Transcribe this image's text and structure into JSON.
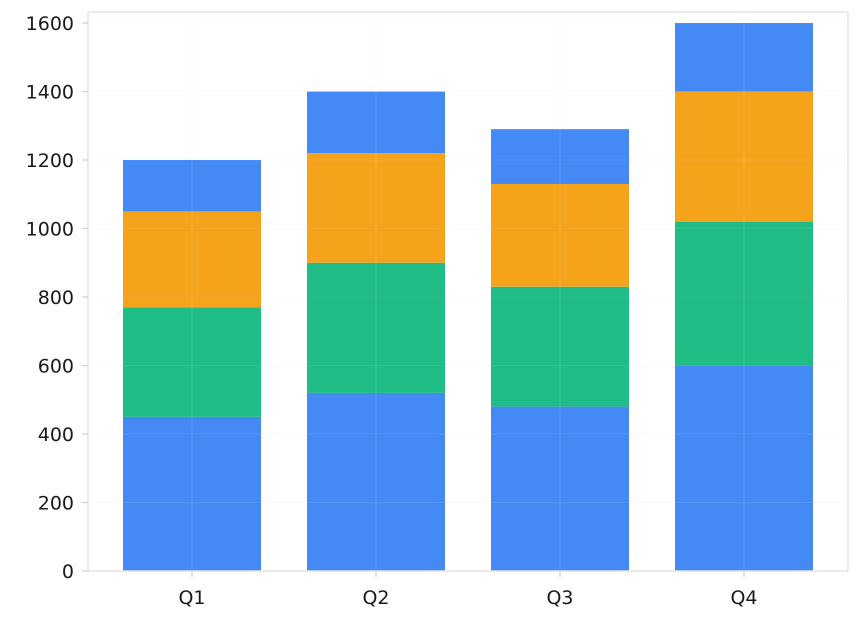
{
  "chart_data": {
    "type": "bar",
    "stacked": true,
    "title": "",
    "xlabel": "",
    "ylabel": "",
    "categories": [
      "Q1",
      "Q2",
      "Q3",
      "Q4"
    ],
    "ylim": [
      0,
      1600
    ],
    "yticks": [
      0,
      200,
      400,
      600,
      800,
      1000,
      1200,
      1400,
      1600
    ],
    "grid": true,
    "series": [
      {
        "color": "#4589f5",
        "values": [
          450,
          520,
          480,
          600
        ]
      },
      {
        "color": "#1fbc86",
        "values": [
          320,
          380,
          350,
          420
        ]
      },
      {
        "color": "#f4a31b",
        "values": [
          280,
          320,
          300,
          380
        ]
      },
      {
        "color": "#4589f5",
        "values": [
          150,
          180,
          160,
          200
        ]
      }
    ]
  }
}
